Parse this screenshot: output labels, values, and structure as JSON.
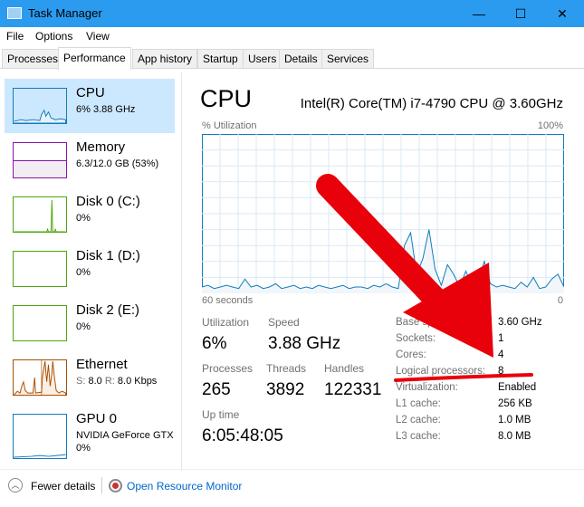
{
  "window": {
    "title": "Task Manager",
    "minimize": "—",
    "maximize": "☐",
    "close": "✕"
  },
  "menu": [
    "File",
    "Options",
    "View"
  ],
  "tabs": [
    "Processes",
    "Performance",
    "App history",
    "Startup",
    "Users",
    "Details",
    "Services"
  ],
  "sidebar": [
    {
      "name": "CPU",
      "sub": "6% 3.88 GHz",
      "color": "#117dbb"
    },
    {
      "name": "Memory",
      "sub": "6.3/12.0 GB (53%)",
      "color": "#8b12ae"
    },
    {
      "name": "Disk 0 (C:)",
      "sub": "0%",
      "color": "#4da60c"
    },
    {
      "name": "Disk 1 (D:)",
      "sub": "0%",
      "color": "#4da60c"
    },
    {
      "name": "Disk 2 (E:)",
      "sub": "0%",
      "color": "#4da60c"
    },
    {
      "name": "Ethernet",
      "sub_s": "S:",
      "sub_s_val": "8.0",
      "sub_r": "R:",
      "sub_r_val": "8.0 Kbps",
      "color": "#a74f01"
    },
    {
      "name": "GPU 0",
      "sub": "NVIDIA GeForce GTX",
      "sub2": "0%",
      "color": "#117dbb"
    }
  ],
  "main": {
    "title": "CPU",
    "model": "Intel(R) Core(TM) i7-4790 CPU @ 3.60GHz",
    "graph": {
      "ylabel": "% Utilization",
      "ymax": "100%",
      "xlabel": "60 seconds",
      "xmin": "0",
      "values": [
        4,
        5,
        3,
        4,
        5,
        4,
        3,
        9,
        4,
        5,
        3,
        4,
        6,
        3,
        4,
        5,
        3,
        4,
        3,
        5,
        4,
        3,
        4,
        5,
        3,
        4,
        4,
        3,
        5,
        4,
        6,
        4,
        3,
        30,
        38,
        12,
        22,
        40,
        15,
        5,
        18,
        12,
        4,
        14,
        5,
        8,
        20,
        6,
        4,
        5,
        4,
        3,
        7,
        4,
        10,
        3,
        4,
        9,
        12,
        4
      ]
    },
    "stats": {
      "utilization_label": "Utilization",
      "utilization": "6%",
      "speed_label": "Speed",
      "speed": "3.88 GHz",
      "processes_label": "Processes",
      "processes": "265",
      "threads_label": "Threads",
      "threads": "3892",
      "handles_label": "Handles",
      "handles": "122331",
      "uptime_label": "Up time",
      "uptime": "6:05:48:05"
    },
    "details": [
      {
        "k": "Base speed:",
        "v": "3.60 GHz"
      },
      {
        "k": "Sockets:",
        "v": "1"
      },
      {
        "k": "Cores:",
        "v": "4"
      },
      {
        "k": "Logical processors:",
        "v": "8"
      },
      {
        "k": "Virtualization:",
        "v": "Enabled"
      },
      {
        "k": "L1 cache:",
        "v": "256 KB"
      },
      {
        "k": "L2 cache:",
        "v": "1.0 MB"
      },
      {
        "k": "L3 cache:",
        "v": "8.0 MB"
      }
    ]
  },
  "footer": {
    "fewer": "Fewer details",
    "monitor": "Open Resource Monitor"
  },
  "annotation_color": "#e8000b"
}
